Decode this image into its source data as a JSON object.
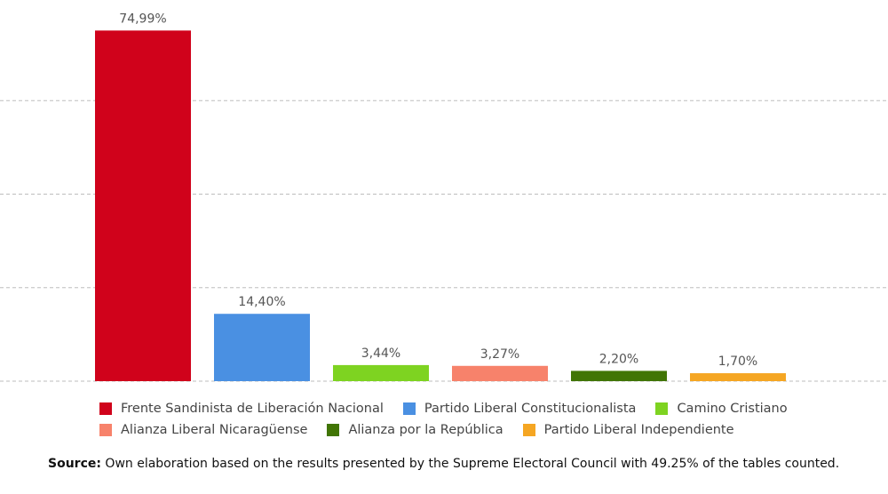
{
  "chart_data": {
    "type": "bar",
    "categories": [
      "Frente Sandinista de Liberación Nacional",
      "Partido Liberal Constitucionalista",
      "Camino Cristiano",
      "Alianza Liberal Nicaragüense",
      "Alianza por la República",
      "Partido Liberal Independiente"
    ],
    "values": [
      74.99,
      14.4,
      3.44,
      3.27,
      2.2,
      1.7
    ],
    "value_labels": [
      "74,99%",
      "14,40%",
      "3,44%",
      "3,27%",
      "2,20%",
      "1,70%"
    ],
    "colors": [
      "#d0021b",
      "#4a90e2",
      "#7ed321",
      "#f7826b",
      "#417505",
      "#f5a623"
    ],
    "ylim": [
      0,
      80
    ],
    "gridlines": [
      20,
      40,
      60
    ],
    "grid": true,
    "legend_position": "bottom",
    "legend": [
      {
        "label": "Frente Sandinista de Liberación Nacional",
        "color": "#d0021b"
      },
      {
        "label": "Partido Liberal Constitucionalista",
        "color": "#4a90e2"
      },
      {
        "label": "Camino Cristiano",
        "color": "#7ed321"
      },
      {
        "label": "Alianza Liberal Nicaragüense",
        "color": "#f7826b"
      },
      {
        "label": "Alianza por la República",
        "color": "#417505"
      },
      {
        "label": "Partido Liberal Independiente",
        "color": "#f5a623"
      }
    ]
  },
  "source": {
    "label": "Source:",
    "text": " Own elaboration based on the results presented by the Supreme Electoral Council with 49.25% of the tables counted."
  }
}
